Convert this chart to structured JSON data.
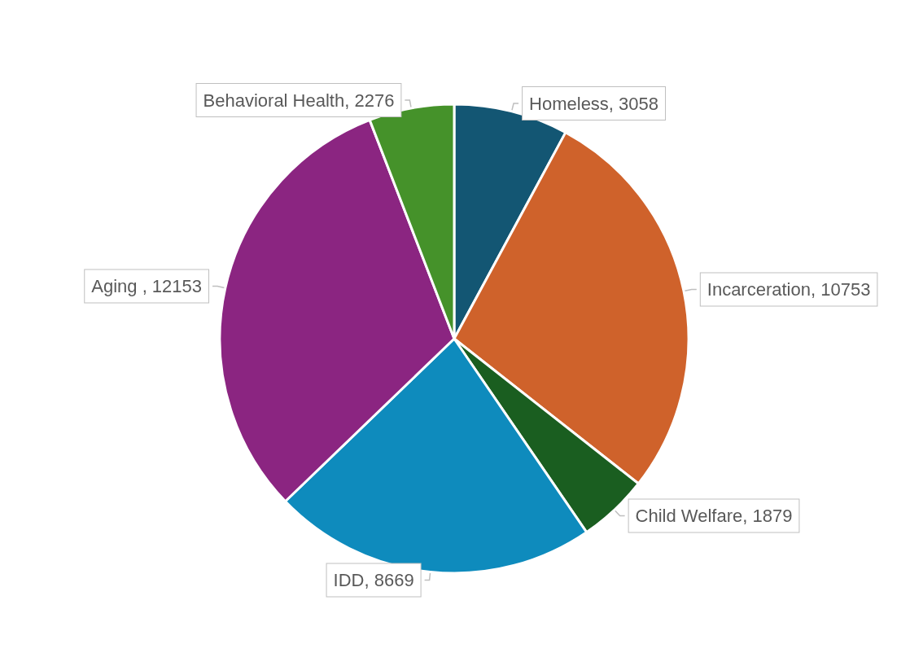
{
  "chart_data": {
    "type": "pie",
    "categories": [
      "Homeless",
      "Incarceration",
      "Child Welfare",
      "IDD",
      "Aging ",
      "Behavioral Health"
    ],
    "values": [
      3058,
      10753,
      1879,
      8669,
      12153,
      2276
    ],
    "colors": [
      "#135673",
      "#cf622b",
      "#1a5e20",
      "#0e8bbd",
      "#8b2581",
      "#45922a"
    ],
    "value_labels": [
      ", 3058",
      ", 10753",
      ", 1879",
      ", 8669",
      ", 12153",
      ", 2276"
    ],
    "legend": false
  }
}
